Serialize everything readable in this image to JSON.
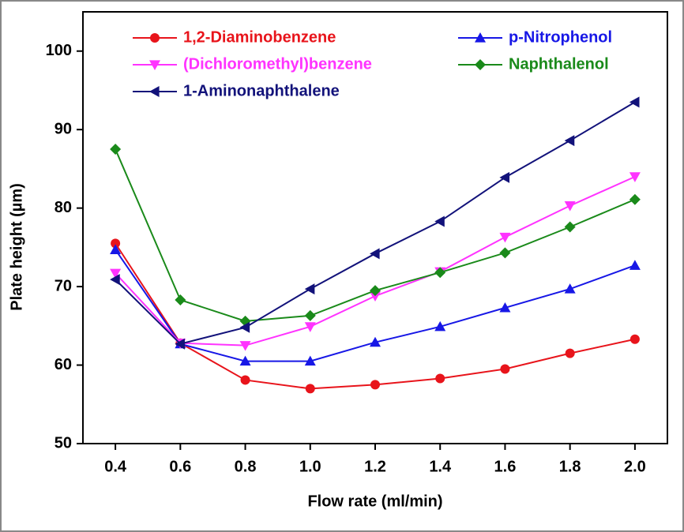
{
  "chart_data": {
    "type": "line",
    "x_label": "Flow rate (ml/min)",
    "y_label": "Plate height (µm)",
    "x": [
      0.4,
      0.6,
      0.8,
      1.0,
      1.2,
      1.4,
      1.6,
      1.8,
      2.0
    ],
    "xlim": [
      0.3,
      2.1
    ],
    "xticks": [
      0.4,
      0.6,
      0.8,
      {
        "value": 1.0,
        "label": "1.0"
      },
      1.2,
      1.4,
      1.6,
      1.8,
      {
        "value": 2.0,
        "label": "2.0"
      }
    ],
    "ylim": [
      50,
      105
    ],
    "yticks": [
      50,
      60,
      70,
      80,
      90,
      100
    ],
    "series": [
      {
        "name": "1,2-Diaminobenzene",
        "color": "#e8141b",
        "marker": "circle",
        "values": [
          75.5,
          62.8,
          58.1,
          57.0,
          57.5,
          58.3,
          59.5,
          61.5,
          63.3
        ]
      },
      {
        "name": "p-Nitrophenol",
        "color": "#1717e6",
        "marker": "triangle-up",
        "values": [
          74.7,
          62.7,
          60.5,
          60.5,
          62.9,
          64.9,
          67.3,
          69.7,
          72.7
        ]
      },
      {
        "name": "(Dichloromethyl)benzene",
        "color": "#ff33ff",
        "marker": "triangle-down",
        "values": [
          71.7,
          62.8,
          62.5,
          64.9,
          68.8,
          71.9,
          76.3,
          80.3,
          84.0
        ]
      },
      {
        "name": "Naphthalenol",
        "color": "#1a8a1a",
        "marker": "diamond",
        "values": [
          87.5,
          68.3,
          65.6,
          66.3,
          69.5,
          71.8,
          74.3,
          77.6,
          81.1
        ]
      },
      {
        "name": "1-Aminonaphthalene",
        "color": "#12127a",
        "marker": "triangle-left",
        "values": [
          70.9,
          62.7,
          64.8,
          69.7,
          74.2,
          78.3,
          83.9,
          88.6,
          93.5
        ]
      }
    ]
  }
}
